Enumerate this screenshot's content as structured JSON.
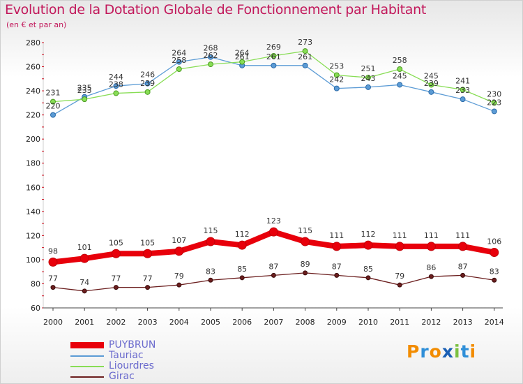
{
  "chart_data": {
    "type": "line",
    "title": "Evolution de la Dotation Globale de Fonctionnement par Habitant",
    "subtitle": "(en € et par an)",
    "xlabel": "",
    "ylabel": "",
    "ylim": [
      60,
      280
    ],
    "yticks": [
      60,
      80,
      100,
      120,
      140,
      160,
      180,
      200,
      220,
      240,
      260,
      280
    ],
    "x": [
      2000,
      2001,
      2002,
      2003,
      2004,
      2005,
      2006,
      2007,
      2008,
      2009,
      2010,
      2011,
      2012,
      2013,
      2014
    ],
    "grid": false,
    "legend_position": "bottom-left",
    "series": [
      {
        "name": "PUYBRUN",
        "color": "#e8000b",
        "values": [
          98,
          101,
          105,
          105,
          107,
          115,
          112,
          123,
          115,
          111,
          112,
          111,
          111,
          111,
          106
        ]
      },
      {
        "name": "Tauriac",
        "color": "#5b9bd5",
        "values": [
          220,
          235,
          244,
          246,
          264,
          268,
          261,
          261,
          261,
          242,
          243,
          245,
          239,
          233,
          223
        ]
      },
      {
        "name": "Liourdres",
        "color": "#88dd55",
        "values": [
          231,
          233,
          238,
          239,
          258,
          262,
          264,
          269,
          273,
          253,
          251,
          258,
          245,
          241,
          230
        ]
      },
      {
        "name": "Girac",
        "color": "#6b1e1e",
        "values": [
          77,
          74,
          77,
          77,
          79,
          83,
          85,
          87,
          89,
          87,
          85,
          79,
          86,
          87,
          83
        ]
      }
    ]
  },
  "logo": {
    "text": "Proxiti",
    "colors": [
      "#f28c00",
      "#2f8fd8",
      "#f28c00",
      "#1a5fb4",
      "#7cc142",
      "#2f8fd8",
      "#f28c00"
    ]
  }
}
